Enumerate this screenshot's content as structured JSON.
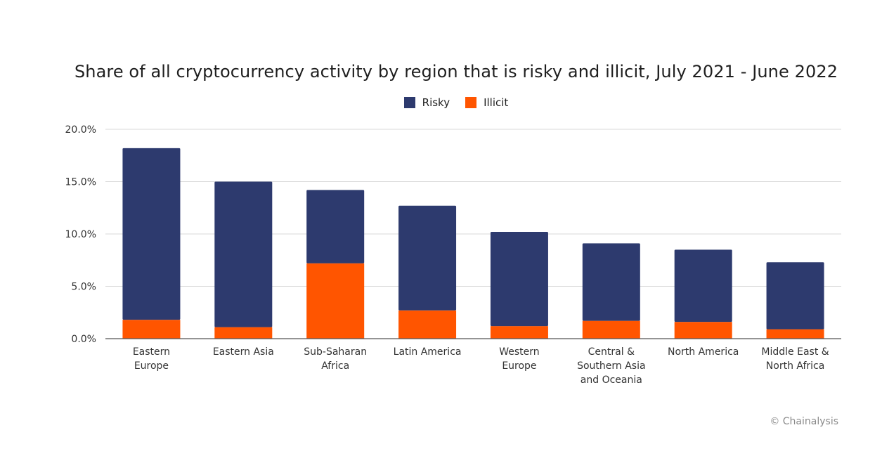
{
  "chart_data": {
    "type": "bar",
    "stacked": true,
    "title": "Share of all cryptocurrency activity by region that is risky and illicit, July 2021 - June 2022",
    "xlabel": "",
    "ylabel": "",
    "ylim": [
      0,
      20
    ],
    "yticks": [
      "0.0%",
      "5.0%",
      "10.0%",
      "15.0%",
      "20.0%"
    ],
    "ytick_values": [
      0,
      5,
      10,
      15,
      20
    ],
    "grid": true,
    "legend_position": "top-center",
    "categories": [
      [
        "Eastern",
        "Europe"
      ],
      [
        "Eastern Asia"
      ],
      [
        "Sub-Saharan",
        "Africa"
      ],
      [
        "Latin America"
      ],
      [
        "Western",
        "Europe"
      ],
      [
        "Central &",
        "Southern Asia",
        "and Oceania"
      ],
      [
        "North America"
      ],
      [
        "Middle East &",
        "North Africa"
      ]
    ],
    "series": [
      {
        "name": "Risky",
        "color": "#2d3a6e",
        "values": [
          16.4,
          13.9,
          7.0,
          10.0,
          9.0,
          7.4,
          6.9,
          6.4
        ]
      },
      {
        "name": "Illicit",
        "color": "#ff5500",
        "values": [
          1.8,
          1.1,
          7.2,
          2.7,
          1.2,
          1.7,
          1.6,
          0.9
        ]
      }
    ]
  },
  "credit": "© Chainalysis"
}
